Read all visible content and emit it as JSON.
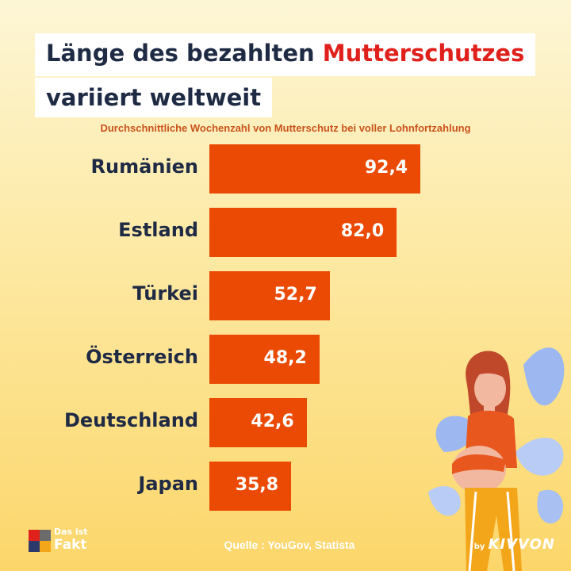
{
  "header": {
    "title_part1": "Länge des bezahlten ",
    "title_highlight": "Mutterschutzes",
    "title_part2": "variiert weltweit"
  },
  "chart_data": {
    "type": "bar",
    "orientation": "horizontal",
    "subtitle": "Durchschnittliche Wochenzahl von Mutterschutz bei voller Lohnfortzahlung",
    "categories": [
      "Rumänien",
      "Estland",
      "Türkei",
      "Österreich",
      "Deutschland",
      "Japan"
    ],
    "values": [
      92.4,
      82.0,
      52.7,
      48.2,
      42.6,
      35.8
    ],
    "value_labels": [
      "92,4",
      "82,0",
      "52,7",
      "48,2",
      "42,6",
      "35,8"
    ],
    "bar_color": "#ea4a04",
    "grid": false,
    "legend": "none"
  },
  "footer": {
    "logo_line1": "Das ist",
    "logo_line2": "Fakt",
    "source": "Quelle : YouGov, Statista",
    "brand_by": "by",
    "brand_name": "KIVVON"
  },
  "colors": {
    "accent": "#e0201b",
    "bar": "#ea4a04",
    "text_dark": "#1f2a44",
    "subtitle": "#c9541c"
  }
}
